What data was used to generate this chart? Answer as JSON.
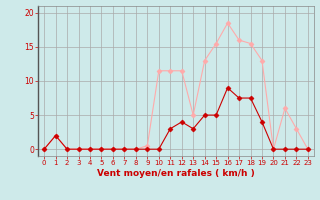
{
  "x": [
    0,
    1,
    2,
    3,
    4,
    5,
    6,
    7,
    8,
    9,
    10,
    11,
    12,
    13,
    14,
    15,
    16,
    17,
    18,
    19,
    20,
    21,
    22,
    23
  ],
  "moyen": [
    0,
    2,
    0,
    0,
    0,
    0,
    0,
    0,
    0,
    0,
    0,
    3,
    4,
    3,
    5,
    5,
    9,
    7.5,
    7.5,
    4,
    0,
    0,
    0,
    0
  ],
  "rafales": [
    0,
    2,
    0,
    0,
    0,
    0,
    0,
    0,
    0,
    0.5,
    11.5,
    11.5,
    11.5,
    5,
    13,
    15.5,
    18.5,
    16,
    15.5,
    13,
    0,
    6,
    3,
    0
  ],
  "xlabel": "Vent moyen/en rafales ( km/h )",
  "xlim": [
    -0.5,
    23.5
  ],
  "ylim": [
    -1,
    21
  ],
  "yticks": [
    0,
    5,
    10,
    15,
    20
  ],
  "xticks": [
    0,
    1,
    2,
    3,
    4,
    5,
    6,
    7,
    8,
    9,
    10,
    11,
    12,
    13,
    14,
    15,
    16,
    17,
    18,
    19,
    20,
    21,
    22,
    23
  ],
  "bg_color": "#ceeaea",
  "grid_color": "#aaaaaa",
  "line_color_moyen": "#cc0000",
  "line_color_rafales": "#ffaaaa",
  "xlabel_color": "#cc0000",
  "tick_color": "#cc0000",
  "marker": "D",
  "marker_size": 2.5
}
